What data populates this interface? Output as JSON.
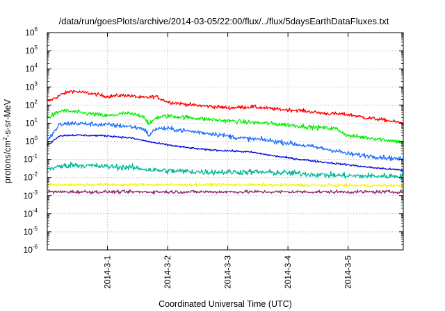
{
  "chart_data": {
    "type": "line",
    "title": "/data/run/goesPlots/archive/2014-03-05/22:00/flux/../flux/5daysEarthDataFluxes.txt",
    "xlabel": "Coordinated Universal Time (UTC)",
    "ylabel_prefix": "protons/cm",
    "ylabel_sup": "2",
    "ylabel_suffix": "-s-sr-MeV",
    "y_scale": "log",
    "ylim_exponents": [
      -6,
      6
    ],
    "y_tick_base": "10",
    "y_tick_exponents": [
      "-6",
      "-5",
      "-4",
      "-3",
      "-2",
      "-1",
      "0",
      "1",
      "2",
      "3",
      "4",
      "5",
      "6"
    ],
    "x_unit": "days",
    "xlim": [
      "2014-02-28 00:00",
      "2014-03-05 22:00"
    ],
    "x_ticks": [
      {
        "label": "2014-3-1",
        "value": "2014-03-01 00:00"
      },
      {
        "label": "2014-3-2",
        "value": "2014-03-02 00:00"
      },
      {
        "label": "2014-3-3",
        "value": "2014-03-03 00:00"
      },
      {
        "label": "2014-3-4",
        "value": "2014-03-04 00:00"
      },
      {
        "label": "2014-3-5",
        "value": "2014-03-05 00:00"
      }
    ],
    "grid": true,
    "legend": "none",
    "series": [
      {
        "color": "#ff0000",
        "noise": 0.1,
        "x": [
          "2014-02-28 00:00",
          "2014-02-28 06:00",
          "2014-02-28 09:36",
          "2014-02-28 16:48",
          "2014-03-01 00:00",
          "2014-03-01 07:12",
          "2014-03-01 14:24",
          "2014-03-01 19:12",
          "2014-03-02 00:00",
          "2014-03-02 09:36",
          "2014-03-02 19:12",
          "2014-03-03 00:00",
          "2014-03-03 09:36",
          "2014-03-03 19:12",
          "2014-03-04 04:48",
          "2014-03-04 14:24",
          "2014-03-05 00:00",
          "2014-03-05 07:12",
          "2014-03-05 14:24",
          "2014-03-05 22:00"
        ],
        "y": [
          150,
          400,
          600,
          450,
          300,
          350,
          250,
          300,
          150,
          100,
          80,
          70,
          80,
          60,
          50,
          35,
          30,
          20,
          15,
          10
        ]
      },
      {
        "color": "#00ee00",
        "noise": 0.12,
        "x": [
          "2014-02-28 00:00",
          "2014-02-28 06:00",
          "2014-02-28 12:00",
          "2014-03-01 00:00",
          "2014-03-01 07:12",
          "2014-03-01 14:24",
          "2014-03-01 16:48",
          "2014-03-01 19:12",
          "2014-03-02 00:00",
          "2014-03-02 09:36",
          "2014-03-02 19:12",
          "2014-03-03 04:48",
          "2014-03-03 14:24",
          "2014-03-04 00:00",
          "2014-03-04 09:36",
          "2014-03-04 19:12",
          "2014-03-05 00:00",
          "2014-03-05 09:36",
          "2014-03-05 19:12",
          "2014-03-05 22:00"
        ],
        "y": [
          20,
          50,
          40,
          25,
          35,
          25,
          8,
          20,
          25,
          20,
          15,
          12,
          10,
          8,
          6,
          5,
          2,
          1.5,
          1,
          0.8
        ]
      },
      {
        "color": "#1e6fff",
        "noise": 0.13,
        "x": [
          "2014-02-28 00:00",
          "2014-02-28 04:48",
          "2014-02-28 09:36",
          "2014-03-01 00:00",
          "2014-03-01 07:12",
          "2014-03-01 14:24",
          "2014-03-01 16:48",
          "2014-03-01 19:12",
          "2014-03-02 00:00",
          "2014-03-02 09:36",
          "2014-03-02 19:12",
          "2014-03-03 04:48",
          "2014-03-03 14:24",
          "2014-03-04 00:00",
          "2014-03-04 09:36",
          "2014-03-04 19:12",
          "2014-03-05 00:00",
          "2014-03-05 09:36",
          "2014-03-05 22:00"
        ],
        "y": [
          1,
          8,
          10,
          8,
          7,
          5,
          2,
          5,
          5,
          3.5,
          2.5,
          1.5,
          1.2,
          0.8,
          0.5,
          0.3,
          0.2,
          0.15,
          0.1
        ]
      },
      {
        "color": "#0000dd",
        "noise": 0.05,
        "x": [
          "2014-02-28 00:00",
          "2014-02-28 04:48",
          "2014-02-28 09:36",
          "2014-03-01 00:00",
          "2014-03-01 09:36",
          "2014-03-01 19:12",
          "2014-03-02 04:48",
          "2014-03-02 14:24",
          "2014-03-03 00:00",
          "2014-03-03 09:36",
          "2014-03-03 19:12",
          "2014-03-04 04:48",
          "2014-03-04 14:24",
          "2014-03-05 00:00",
          "2014-03-05 09:36",
          "2014-03-05 22:00"
        ],
        "y": [
          0.6,
          2,
          2.2,
          2,
          1.5,
          0.8,
          0.5,
          0.35,
          0.3,
          0.25,
          0.15,
          0.1,
          0.07,
          0.05,
          0.035,
          0.025
        ]
      },
      {
        "color": "#00b894",
        "noise": 0.16,
        "x": [
          "2014-02-28 00:00",
          "2014-02-28 09:36",
          "2014-03-01 00:00",
          "2014-03-01 09:36",
          "2014-03-01 19:12",
          "2014-03-02 04:48",
          "2014-03-02 14:24",
          "2014-03-03 00:00",
          "2014-03-03 09:36",
          "2014-03-04 00:00",
          "2014-03-04 09:36",
          "2014-03-04 19:12",
          "2014-03-05 04:48",
          "2014-03-05 14:24",
          "2014-03-05 22:00"
        ],
        "y": [
          0.03,
          0.05,
          0.04,
          0.035,
          0.025,
          0.022,
          0.02,
          0.02,
          0.02,
          0.018,
          0.015,
          0.013,
          0.012,
          0.012,
          0.012
        ]
      },
      {
        "color": "#f5f500",
        "noise": 0.08,
        "x": [
          "2014-02-28 00:00",
          "2014-03-01 00:00",
          "2014-03-02 00:00",
          "2014-03-03 00:00",
          "2014-03-04 00:00",
          "2014-03-05 00:00",
          "2014-03-05 22:00"
        ],
        "y": [
          0.004,
          0.004,
          0.004,
          0.004,
          0.0038,
          0.0036,
          0.0035
        ]
      },
      {
        "color": "#8b2a6a",
        "noise": 0.09,
        "x": [
          "2014-02-28 00:00",
          "2014-03-01 00:00",
          "2014-03-02 00:00",
          "2014-03-03 00:00",
          "2014-03-04 00:00",
          "2014-03-05 00:00",
          "2014-03-05 22:00"
        ],
        "y": [
          0.0016,
          0.0016,
          0.0016,
          0.0016,
          0.0016,
          0.0016,
          0.0016
        ]
      }
    ]
  }
}
